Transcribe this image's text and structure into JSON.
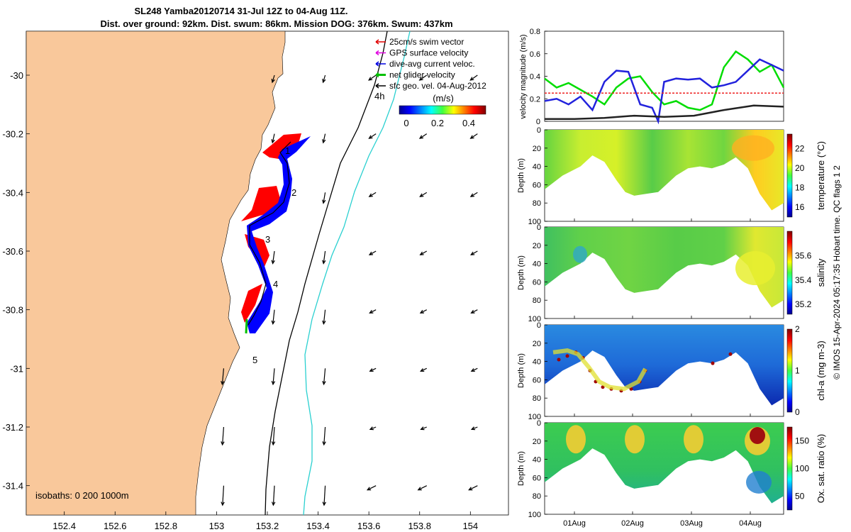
{
  "title": {
    "line1": "SL248 Yamba20120714 31-Jul 12Z to 04-Aug 11Z.",
    "line2": "Dist. over ground: 92km. Dist. swum: 86km. Mission DOG: 376km. Swum: 437km"
  },
  "credit": "© IMOS 15-Apr-2024 05:17:35 Hobart time. QC flags 1  2",
  "map": {
    "legend": [
      {
        "label": "25cm/s swim vector",
        "color": "#e00000"
      },
      {
        "label": "GPS surface velocity",
        "color": "#e000e0"
      },
      {
        "label": "dive-avg current veloc.",
        "color": "#0000e0"
      },
      {
        "label": "net glider velocity",
        "color": "#00c000"
      },
      {
        "label": "sfc geo. vel. 04-Aug-2012",
        "color": "#000000"
      }
    ],
    "colorbar": {
      "label": "(m/s)",
      "ticks": [
        "0",
        "0.2",
        "0.4"
      ]
    },
    "isobaths_label": "isobaths: 0   200  1000m",
    "annot_4h": "4h",
    "day_labels": [
      "1",
      "2",
      "3",
      "4",
      "5"
    ],
    "colors": {
      "land": "#f9c89b",
      "glider_red": "#ff0000",
      "glider_blue": "#0000ff",
      "isobath_200": "#000000",
      "isobath_1000": "#2ad0d0"
    }
  },
  "chart_data": [
    {
      "type": "line",
      "name": "map-axes",
      "x_ticks": [
        "152.4",
        "152.6",
        "152.8",
        "153",
        "153.2",
        "153.4",
        "153.6",
        "153.8",
        "154"
      ],
      "y_ticks": [
        "-30",
        "-30.2",
        "-30.4",
        "-30.6",
        "-30.8",
        "-31",
        "-31.2",
        "-31.4"
      ],
      "xlim": [
        152.25,
        154.15
      ],
      "ylim": [
        -31.5,
        -29.85
      ],
      "glider_track": {
        "lon": [
          153.23,
          153.24,
          153.2,
          153.19,
          153.18,
          153.17,
          153.16,
          153.17,
          153.2,
          153.23,
          153.26,
          153.27,
          153.25,
          153.23,
          153.2,
          153.18,
          153.15,
          153.12,
          153.12,
          153.11
        ],
        "lat": [
          -30.28,
          -30.32,
          -30.36,
          -30.43,
          -30.47,
          -30.51,
          -30.56,
          -30.6,
          -30.63,
          -30.67,
          -30.7,
          -30.73,
          -30.76,
          -30.79,
          -30.81,
          -30.83,
          -30.85,
          -30.88,
          -30.9,
          -30.92
        ]
      },
      "sfc_vectors_per_degree_u_v": [
        [
          -0.12,
          -0.15
        ],
        [
          -0.1,
          -0.18
        ],
        [
          -0.08,
          -0.22
        ]
      ]
    },
    {
      "type": "line",
      "name": "velocity-magnitude",
      "ylabel": "velocity magnitude (m/s)",
      "ylim": [
        0,
        0.8
      ],
      "y_ticks": [
        "0",
        "0.2",
        "0.4",
        "0.6",
        "0.8"
      ],
      "series": [
        {
          "color": "#00dd00",
          "x": [
            0,
            0.2,
            0.4,
            0.6,
            0.8,
            1.0,
            1.2,
            1.4,
            1.6,
            1.8,
            2.0,
            2.2,
            2.4,
            2.6,
            2.8,
            3.0,
            3.2,
            3.4,
            3.6,
            3.8,
            4.0
          ],
          "values": [
            0.38,
            0.3,
            0.34,
            0.28,
            0.22,
            0.15,
            0.3,
            0.38,
            0.4,
            0.26,
            0.15,
            0.18,
            0.12,
            0.1,
            0.15,
            0.48,
            0.62,
            0.55,
            0.44,
            0.5,
            0.3
          ]
        },
        {
          "color": "#2222dd",
          "x": [
            0,
            0.2,
            0.4,
            0.6,
            0.8,
            1.0,
            1.2,
            1.4,
            1.6,
            1.8,
            1.9,
            2.0,
            2.2,
            2.4,
            2.6,
            2.8,
            3.0,
            3.2,
            3.4,
            3.6,
            3.8,
            4.0
          ],
          "values": [
            0.18,
            0.2,
            0.15,
            0.22,
            0.1,
            0.35,
            0.45,
            0.44,
            0.15,
            0.12,
            0.0,
            0.35,
            0.38,
            0.37,
            0.38,
            0.3,
            0.32,
            0.35,
            0.45,
            0.55,
            0.5,
            0.45
          ]
        },
        {
          "color": "#ee2222",
          "x": [
            0,
            4.0
          ],
          "values": [
            0.25,
            0.25
          ]
        },
        {
          "color": "#222222",
          "x": [
            0,
            0.5,
            1.0,
            1.5,
            2.0,
            2.5,
            3.0,
            3.5,
            4.0
          ],
          "values": [
            0.02,
            0.02,
            0.03,
            0.05,
            0.04,
            0.05,
            0.1,
            0.14,
            0.13
          ]
        }
      ]
    },
    {
      "type": "heatmap",
      "name": "temperature",
      "ylabel": "Depth (m)",
      "colorbar_label": "temperature (°C)",
      "colorbar_ticks": [
        "16",
        "18",
        "20",
        "22"
      ],
      "clim": [
        15,
        23.5
      ],
      "depth_ticks": [
        "0",
        "20",
        "40",
        "60",
        "80",
        "100"
      ]
    },
    {
      "type": "heatmap",
      "name": "salinity",
      "ylabel": "Depth (m)",
      "colorbar_label": "salinity",
      "colorbar_ticks": [
        "35.2",
        "35.4",
        "35.6"
      ],
      "clim": [
        35.12,
        35.8
      ],
      "depth_ticks": [
        "0",
        "20",
        "40",
        "60",
        "80",
        "100"
      ]
    },
    {
      "type": "heatmap",
      "name": "chlorophyll",
      "ylabel": "Depth (m)",
      "colorbar_label": "chl-a (mg m-3)",
      "colorbar_ticks": [
        "0",
        "1",
        "2"
      ],
      "clim": [
        0,
        2
      ],
      "depth_ticks": [
        "0",
        "20",
        "40",
        "60",
        "80",
        "100"
      ]
    },
    {
      "type": "heatmap",
      "name": "oxygen",
      "ylabel": "Depth (m)",
      "colorbar_label": "Ox. sat. ratio (%)",
      "colorbar_ticks": [
        "50",
        "100",
        "150"
      ],
      "clim": [
        25,
        175
      ],
      "depth_ticks": [
        "0",
        "20",
        "40",
        "60",
        "80",
        "100"
      ]
    }
  ],
  "date_ticks": [
    "01Aug",
    "02Aug",
    "03Aug",
    "04Aug"
  ],
  "bottom_depth": {
    "x": [
      0,
      0.3,
      0.6,
      0.8,
      1.0,
      1.2,
      1.35,
      1.5,
      1.7,
      1.9,
      2.0,
      2.2,
      2.4,
      2.6,
      2.8,
      3.0,
      3.2,
      3.4,
      3.6,
      3.8,
      4.0
    ],
    "depth": [
      65,
      50,
      40,
      28,
      35,
      55,
      68,
      72,
      70,
      68,
      62,
      50,
      42,
      40,
      42,
      38,
      30,
      42,
      70,
      88,
      80
    ]
  }
}
